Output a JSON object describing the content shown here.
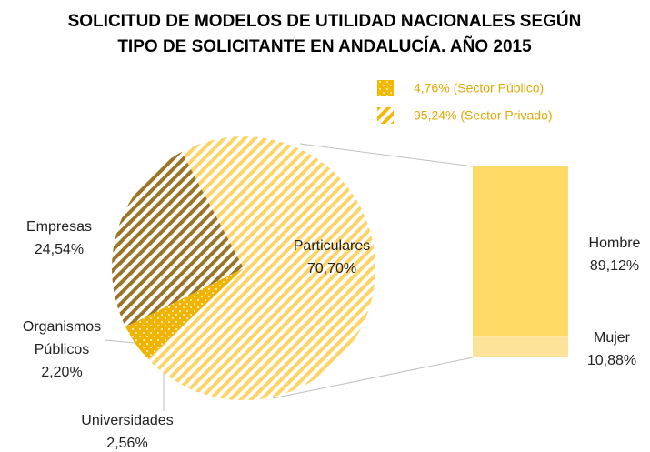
{
  "chart_data": {
    "type": "pie-of-bar",
    "title": [
      "SOLICITUD DE MODELOS DE UTILIDAD NACIONALES SEGÚN",
      "TIPO DE SOLICITANTE EN ANDALUCÍA. AÑO 2015"
    ],
    "legend": [
      {
        "label": "4,76% (Sector Público)",
        "color": "#f5b800",
        "pattern": "dots"
      },
      {
        "label": "95,24% (Sector Privado)",
        "color": "#f5b800",
        "pattern": "stripes"
      }
    ],
    "categories": [
      "Particulares",
      "Universidades",
      "Organismos Públicos",
      "Empresas"
    ],
    "values": [
      70.7,
      2.56,
      2.2,
      24.54
    ],
    "value_labels": [
      "70,70%",
      "2,56%",
      "2,20%",
      "24,54%"
    ],
    "colors": [
      "#fdd465",
      "#f0b400",
      "#f0b400",
      "#9a7528"
    ],
    "patterns": [
      "stripes",
      "dots",
      "dots",
      "stripes"
    ],
    "bar": {
      "categories": [
        "Hombre",
        "Mujer"
      ],
      "values": [
        89.12,
        10.88
      ],
      "value_labels": [
        "89,12%",
        "10,88%"
      ],
      "colors": [
        "#fdd966",
        "#fde39a"
      ]
    }
  }
}
